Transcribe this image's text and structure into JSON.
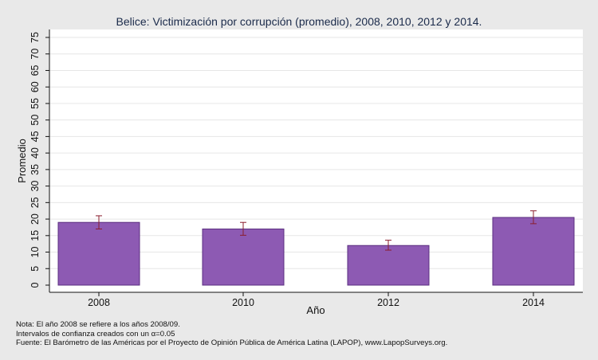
{
  "chart_data": {
    "type": "bar",
    "title": "Belice: Victimización por corrupción (promedio), 2008, 2010, 2012 y 2014.",
    "xlabel": "Año",
    "ylabel": "Promedio",
    "categories": [
      "2008",
      "2010",
      "2012",
      "2014"
    ],
    "values": [
      19,
      17,
      12,
      20.5
    ],
    "ci_low": [
      17,
      15.1,
      10.6,
      18.6
    ],
    "ci_high": [
      21,
      19,
      13.6,
      22.5
    ],
    "ylim": [
      0,
      75
    ],
    "yticks": [
      "0",
      "5",
      "10",
      "15",
      "20",
      "25",
      "30",
      "35",
      "40",
      "45",
      "50",
      "55",
      "60",
      "65",
      "70",
      "75"
    ],
    "grid": true,
    "legend": "none",
    "colors": {
      "bar_fill": "#8d5ab3",
      "bar_stroke": "#5b2f80",
      "error_bar": "#8b1e2e",
      "plot_background": "#ffffff",
      "outer_background": "#e9e9e9",
      "gridline": "#e6e6e6"
    }
  },
  "notes": [
    "Nota: El año 2008 se refiere a los años 2008/09.",
    "Intervalos de confianza creados con un α=0.05",
    "Fuente: El Barómetro de las Américas por el Proyecto de Opinión Pública de América Latina (LAPOP), www.LapopSurveys.org."
  ]
}
